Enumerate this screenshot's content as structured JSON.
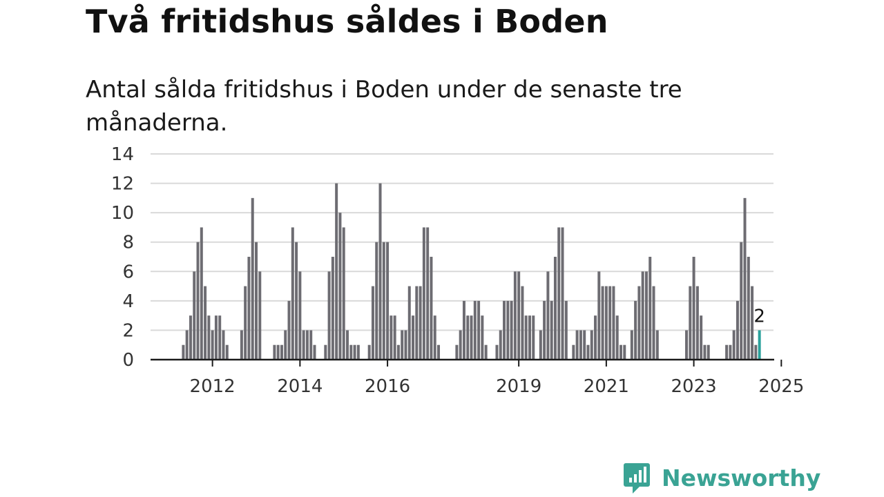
{
  "header": {
    "title": "Två fritidshus såldes i Boden",
    "subtitle": "Antal sålda fritidshus i Boden under de senaste tre månaderna."
  },
  "brand": {
    "name": "Newsworthy",
    "icon": "newsworthy-logo-icon",
    "color": "#3aa394"
  },
  "chart_data": {
    "type": "bar",
    "title": "",
    "xlabel": "",
    "ylabel": "",
    "ylim": [
      0,
      14
    ],
    "yticks": [
      0,
      2,
      4,
      6,
      8,
      10,
      12,
      14
    ],
    "grid": true,
    "legend": "none",
    "xtick_labels": [
      "2012",
      "2014",
      "2016",
      "2019",
      "2021",
      "2023",
      "2025"
    ],
    "bar_color": "#6d6c72",
    "highlight_color": "#2aa19b",
    "highlight_label": "2",
    "series": [
      {
        "values": [
          1,
          2,
          3,
          6,
          8,
          9,
          5,
          3,
          2,
          3,
          3,
          2,
          1,
          0,
          0,
          0,
          2,
          5,
          7,
          11,
          8,
          6,
          0,
          0,
          0,
          1,
          1,
          1,
          2,
          4,
          9,
          8,
          6,
          2,
          2,
          2,
          1,
          0,
          0,
          1,
          6,
          7,
          12,
          10,
          9,
          2,
          1,
          1,
          1,
          0,
          0,
          1,
          5,
          8,
          12,
          8,
          8,
          3,
          3,
          1,
          2,
          2,
          5,
          3,
          5,
          5,
          9,
          9,
          7,
          3,
          1,
          0,
          0,
          0,
          0,
          1,
          2,
          4,
          3,
          3,
          4,
          4,
          3,
          1,
          0,
          0,
          1,
          2,
          4,
          4,
          4,
          6,
          6,
          5,
          3,
          3,
          3,
          0,
          2,
          4,
          6,
          4,
          7,
          9,
          9,
          4,
          0,
          1,
          2,
          2,
          2,
          1,
          2,
          3,
          6,
          5,
          5,
          5,
          5,
          3,
          1,
          1,
          0,
          2,
          4,
          5,
          6,
          6,
          7,
          5,
          2,
          0,
          0,
          0,
          0,
          0,
          0,
          0,
          2,
          5,
          7,
          5,
          3,
          1,
          1,
          0,
          0,
          0,
          0,
          1,
          1,
          2,
          4,
          8,
          11,
          7,
          5,
          1,
          2
        ]
      }
    ]
  }
}
